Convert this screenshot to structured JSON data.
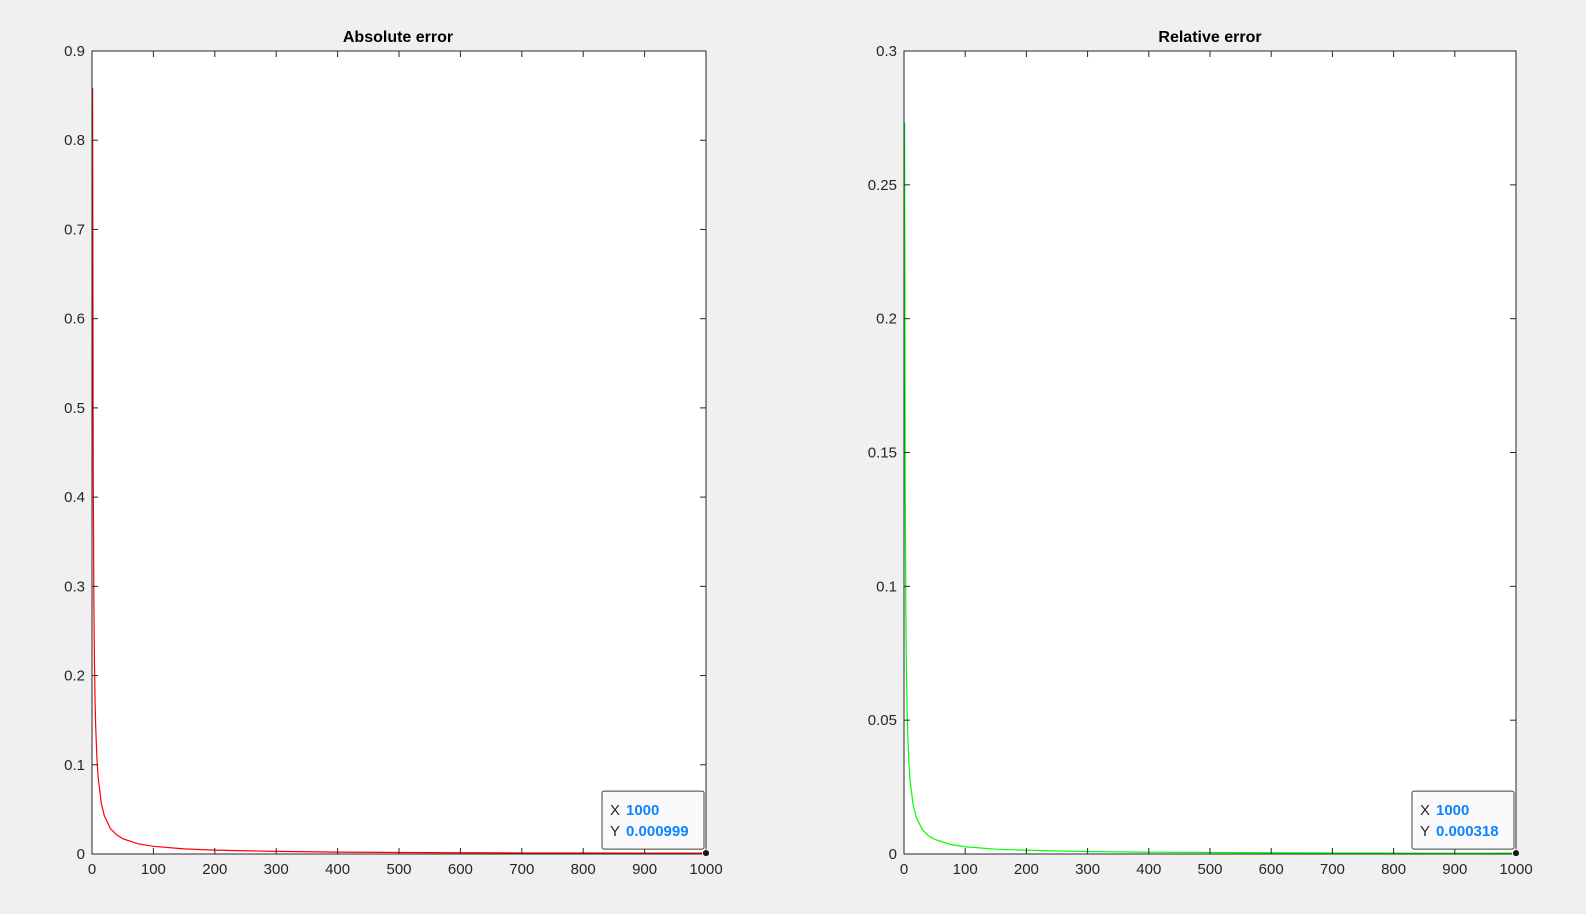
{
  "chart_data": [
    {
      "type": "line",
      "title": "Absolute error",
      "xlabel": "",
      "ylabel": "",
      "xlim": [
        0,
        1000
      ],
      "ylim": [
        0,
        0.9
      ],
      "xticks": [
        0,
        100,
        200,
        300,
        400,
        500,
        600,
        700,
        800,
        900,
        1000
      ],
      "xtick_labels": [
        "0",
        "100",
        "200",
        "300",
        "400",
        "500",
        "600",
        "700",
        "800",
        "900",
        "1000"
      ],
      "yticks": [
        0,
        0.1,
        0.2,
        0.3,
        0.4,
        0.5,
        0.6,
        0.7,
        0.8,
        0.9
      ],
      "ytick_labels": [
        "0",
        "0.1",
        "0.2",
        "0.3",
        "0.4",
        "0.5",
        "0.6",
        "0.7",
        "0.8",
        "0.9"
      ],
      "grid": false,
      "series": [
        {
          "color": "#ff0000",
          "x": [
            1,
            2,
            3,
            4,
            5,
            6,
            8,
            10,
            15,
            20,
            30,
            40,
            50,
            75,
            100,
            150,
            200,
            300,
            400,
            500,
            600,
            700,
            800,
            900,
            1000
          ],
          "y": [
            0.8584,
            0.4292,
            0.2861,
            0.2146,
            0.1717,
            0.1431,
            0.1073,
            0.0859,
            0.0572,
            0.0429,
            0.0286,
            0.0215,
            0.0172,
            0.0114,
            0.0086,
            0.0057,
            0.0043,
            0.0029,
            0.0021,
            0.0017,
            0.0014,
            0.0012,
            0.0011,
            0.00095,
            0.000999
          ]
        }
      ],
      "datatip": {
        "x_label": "X",
        "x_value": "1000",
        "y_label": "Y",
        "y_value": "0.000999",
        "point": [
          1000,
          0.000999
        ]
      }
    },
    {
      "type": "line",
      "title": "Relative error",
      "xlabel": "",
      "ylabel": "",
      "xlim": [
        0,
        1000
      ],
      "ylim": [
        0,
        0.3
      ],
      "xticks": [
        0,
        100,
        200,
        300,
        400,
        500,
        600,
        700,
        800,
        900,
        1000
      ],
      "xtick_labels": [
        "0",
        "100",
        "200",
        "300",
        "400",
        "500",
        "600",
        "700",
        "800",
        "900",
        "1000"
      ],
      "yticks": [
        0,
        0.05,
        0.1,
        0.15,
        0.2,
        0.25,
        0.3
      ],
      "ytick_labels": [
        "0",
        "0.05",
        "0.1",
        "0.15",
        "0.2",
        "0.25",
        "0.3"
      ],
      "grid": false,
      "series": [
        {
          "color": "#00ff00",
          "x": [
            1,
            2,
            3,
            4,
            5,
            6,
            8,
            10,
            15,
            20,
            30,
            40,
            50,
            75,
            100,
            150,
            200,
            300,
            400,
            500,
            600,
            700,
            800,
            900,
            1000
          ],
          "y": [
            0.2732,
            0.1366,
            0.0911,
            0.0683,
            0.0546,
            0.0455,
            0.0342,
            0.0273,
            0.0182,
            0.0137,
            0.0091,
            0.0068,
            0.0055,
            0.0036,
            0.0027,
            0.0018,
            0.0014,
            0.00091,
            0.00068,
            0.00055,
            0.00046,
            0.00039,
            0.00034,
            0.0003,
            0.000318
          ]
        }
      ],
      "datatip": {
        "x_label": "X",
        "x_value": "1000",
        "y_label": "Y",
        "y_value": "0.000318",
        "point": [
          1000,
          0.000318
        ]
      }
    }
  ]
}
